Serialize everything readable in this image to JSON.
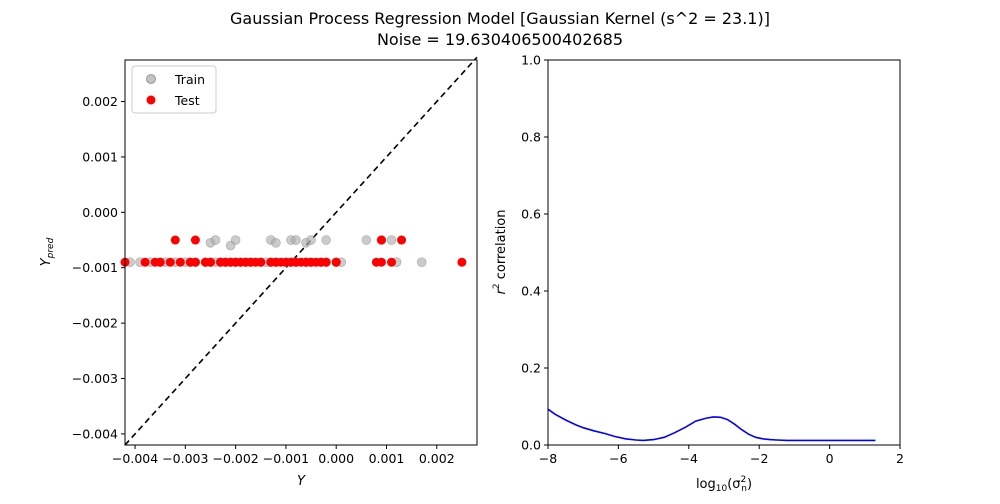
{
  "figure": {
    "title_line1": "Gaussian Process Regression Model [Gaussian Kernel (s^2 = 23.1)]",
    "title_line2": "Noise = 19.630406500402685"
  },
  "chart_data": [
    {
      "type": "scatter",
      "xlabel": "Y",
      "ylabel": "Y_pred",
      "xlim": [
        -0.0042,
        0.0028
      ],
      "ylim": [
        -0.0042,
        0.00275
      ],
      "xticks": [
        -0.004,
        -0.003,
        -0.002,
        -0.001,
        0.0,
        0.001,
        0.002
      ],
      "xtick_labels": [
        "−0.004",
        "−0.003",
        "−0.002",
        "−0.001",
        "0.000",
        "0.001",
        "0.002"
      ],
      "yticks": [
        -0.004,
        -0.003,
        -0.002,
        -0.001,
        0.0,
        0.001,
        0.002
      ],
      "ytick_labels": [
        "−0.004",
        "−0.003",
        "−0.002",
        "−0.001",
        "0.000",
        "0.001",
        "0.002"
      ],
      "legend": {
        "placement": "upper-left",
        "entries": [
          "Train",
          "Test"
        ]
      },
      "reference_line": {
        "label": "",
        "style": "dashed",
        "color": "#000000",
        "points": [
          [
            -0.0042,
            -0.0042
          ],
          [
            0.0028,
            0.0028
          ]
        ]
      },
      "series": [
        {
          "name": "Train",
          "color": "#a9a9a9",
          "points": [
            [
              -0.0041,
              -0.0009
            ],
            [
              -0.0039,
              -0.0009
            ],
            [
              -0.0037,
              -0.0009
            ],
            [
              -0.0035,
              -0.0009
            ],
            [
              -0.0034,
              -0.0009
            ],
            [
              -0.0032,
              -0.0009
            ],
            [
              -0.003,
              -0.0009
            ],
            [
              -0.0029,
              -0.0009
            ],
            [
              -0.0028,
              -0.0009
            ],
            [
              -0.0026,
              -0.0009
            ],
            [
              -0.0025,
              -0.0009
            ],
            [
              -0.0024,
              -0.0009
            ],
            [
              -0.0023,
              -0.0009
            ],
            [
              -0.0022,
              -0.0009
            ],
            [
              -0.0021,
              -0.0009
            ],
            [
              -0.002,
              -0.0009
            ],
            [
              -0.0019,
              -0.0009
            ],
            [
              -0.0018,
              -0.0009
            ],
            [
              -0.0017,
              -0.0009
            ],
            [
              -0.0015,
              -0.0009
            ],
            [
              -0.0014,
              -0.0009
            ],
            [
              -0.0013,
              -0.0009
            ],
            [
              -0.0012,
              -0.0009
            ],
            [
              -0.001,
              -0.0009
            ],
            [
              -0.0009,
              -0.0009
            ],
            [
              -0.0008,
              -0.0009
            ],
            [
              -0.0006,
              -0.0009
            ],
            [
              -0.0005,
              -0.0009
            ],
            [
              -0.0003,
              -0.0009
            ],
            [
              -0.0002,
              -0.0009
            ],
            [
              0.0,
              -0.0009
            ],
            [
              0.0001,
              -0.0009
            ],
            [
              0.0012,
              -0.0009
            ],
            [
              0.0017,
              -0.0009
            ],
            [
              -0.0025,
              -0.00055
            ],
            [
              -0.0024,
              -0.0005
            ],
            [
              -0.0021,
              -0.0006
            ],
            [
              -0.002,
              -0.0005
            ],
            [
              -0.0013,
              -0.0005
            ],
            [
              -0.0012,
              -0.00055
            ],
            [
              -0.0009,
              -0.0005
            ],
            [
              -0.0008,
              -0.0005
            ],
            [
              -0.0006,
              -0.00055
            ],
            [
              -0.0005,
              -0.0005
            ],
            [
              -0.0002,
              -0.0005
            ],
            [
              0.0006,
              -0.0005
            ],
            [
              0.0009,
              -0.0005
            ],
            [
              0.0011,
              -0.0005
            ]
          ]
        },
        {
          "name": "Test",
          "color": "#ff0000",
          "points": [
            [
              -0.0042,
              -0.0009
            ],
            [
              -0.0038,
              -0.0009
            ],
            [
              -0.0036,
              -0.0009
            ],
            [
              -0.0035,
              -0.0009
            ],
            [
              -0.0033,
              -0.0009
            ],
            [
              -0.0031,
              -0.0009
            ],
            [
              -0.0029,
              -0.0009
            ],
            [
              -0.0028,
              -0.0009
            ],
            [
              -0.0026,
              -0.0009
            ],
            [
              -0.0025,
              -0.0009
            ],
            [
              -0.0023,
              -0.0009
            ],
            [
              -0.0022,
              -0.0009
            ],
            [
              -0.0021,
              -0.0009
            ],
            [
              -0.002,
              -0.0009
            ],
            [
              -0.0019,
              -0.0009
            ],
            [
              -0.0018,
              -0.0009
            ],
            [
              -0.0017,
              -0.0009
            ],
            [
              -0.0016,
              -0.0009
            ],
            [
              -0.0015,
              -0.0009
            ],
            [
              -0.0013,
              -0.0009
            ],
            [
              -0.0012,
              -0.0009
            ],
            [
              -0.0011,
              -0.0009
            ],
            [
              -0.001,
              -0.0009
            ],
            [
              -0.0009,
              -0.0009
            ],
            [
              -0.0008,
              -0.0009
            ],
            [
              -0.0007,
              -0.0009
            ],
            [
              -0.0006,
              -0.0009
            ],
            [
              -0.0005,
              -0.0009
            ],
            [
              -0.0004,
              -0.0009
            ],
            [
              -0.0003,
              -0.0009
            ],
            [
              -0.0002,
              -0.0009
            ],
            [
              0.0,
              -0.0009
            ],
            [
              0.0008,
              -0.0009
            ],
            [
              0.0009,
              -0.0009
            ],
            [
              0.0011,
              -0.0009
            ],
            [
              0.0025,
              -0.0009
            ],
            [
              -0.0032,
              -0.0005
            ],
            [
              -0.0028,
              -0.0005
            ],
            [
              0.0009,
              -0.0005
            ],
            [
              0.0013,
              -0.0005
            ]
          ]
        }
      ]
    },
    {
      "type": "line",
      "xlabel": "log10(σ_n^2)",
      "ylabel": "r^2 correlation",
      "xlim": [
        -8,
        2
      ],
      "ylim": [
        0,
        1
      ],
      "xticks": [
        -8,
        -6,
        -4,
        -2,
        0,
        2
      ],
      "xtick_labels": [
        "−8",
        "−6",
        "−4",
        "−2",
        "0",
        "2"
      ],
      "yticks": [
        0,
        0.2,
        0.4,
        0.6,
        0.8,
        1.0
      ],
      "ytick_labels": [
        "0.0",
        "0.2",
        "0.4",
        "0.6",
        "0.8",
        "1.0"
      ],
      "series": [
        {
          "name": "",
          "color": "#0000ff",
          "x": [
            -8,
            -7.8,
            -7.5,
            -7.2,
            -7,
            -6.7,
            -6.4,
            -6.1,
            -5.8,
            -5.5,
            -5.3,
            -5,
            -4.7,
            -4.4,
            -4.1,
            -3.8,
            -3.5,
            -3.3,
            -3.1,
            -2.9,
            -2.7,
            -2.5,
            -2.3,
            -2.1,
            -1.9,
            -1.7,
            -1.5,
            -1.2,
            -0.9,
            -0.5,
            0,
            0.5,
            1,
            1.3
          ],
          "y": [
            0.093,
            0.08,
            0.065,
            0.052,
            0.045,
            0.037,
            0.03,
            0.022,
            0.016,
            0.013,
            0.012,
            0.014,
            0.02,
            0.032,
            0.046,
            0.062,
            0.07,
            0.073,
            0.072,
            0.066,
            0.054,
            0.04,
            0.028,
            0.02,
            0.016,
            0.014,
            0.013,
            0.012,
            0.012,
            0.012,
            0.012,
            0.012,
            0.012,
            0.012
          ]
        }
      ]
    }
  ]
}
